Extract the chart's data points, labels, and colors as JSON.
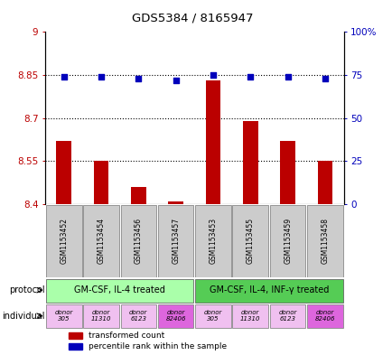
{
  "title": "GDS5384 / 8165947",
  "samples": [
    "GSM1153452",
    "GSM1153454",
    "GSM1153456",
    "GSM1153457",
    "GSM1153453",
    "GSM1153455",
    "GSM1153459",
    "GSM1153458"
  ],
  "bar_values": [
    8.62,
    8.55,
    8.46,
    8.41,
    8.83,
    8.69,
    8.62,
    8.55
  ],
  "dot_values": [
    74,
    74,
    73,
    72,
    75,
    74,
    74,
    73
  ],
  "bar_color": "#bb0000",
  "dot_color": "#0000bb",
  "ylim_left": [
    8.4,
    9.0
  ],
  "ylim_right": [
    0,
    100
  ],
  "yticks_left": [
    8.4,
    8.55,
    8.7,
    8.85,
    9.0
  ],
  "yticks_right": [
    0,
    25,
    50,
    75,
    100
  ],
  "ytick_labels_left": [
    "8.4",
    "8.55",
    "8.7",
    "8.85",
    "9"
  ],
  "ytick_labels_right": [
    "0",
    "25",
    "50",
    "75",
    "100%"
  ],
  "hlines": [
    8.55,
    8.7,
    8.85
  ],
  "protocol_labels": [
    "GM-CSF, IL-4 treated",
    "GM-CSF, IL-4, INF-γ treated"
  ],
  "protocol_color_light": "#aaffaa",
  "protocol_color_dark": "#55cc55",
  "individual_colors": [
    "#f0c0f0",
    "#f0c0f0",
    "#f0c0f0",
    "#dd66dd",
    "#f0c0f0",
    "#f0c0f0",
    "#f0c0f0",
    "#dd66dd"
  ],
  "individual_labels": [
    "donor\n305",
    "donor\n11310",
    "donor\n6123",
    "donor\n82406",
    "donor\n305",
    "donor\n11310",
    "donor\n6123",
    "donor\n82406"
  ],
  "legend_bar_label": "transformed count",
  "legend_dot_label": "percentile rank within the sample",
  "protocol_row_label": "protocol",
  "individual_row_label": "individual",
  "sample_box_color": "#cccccc",
  "baseline": 8.4,
  "bar_width": 0.4
}
